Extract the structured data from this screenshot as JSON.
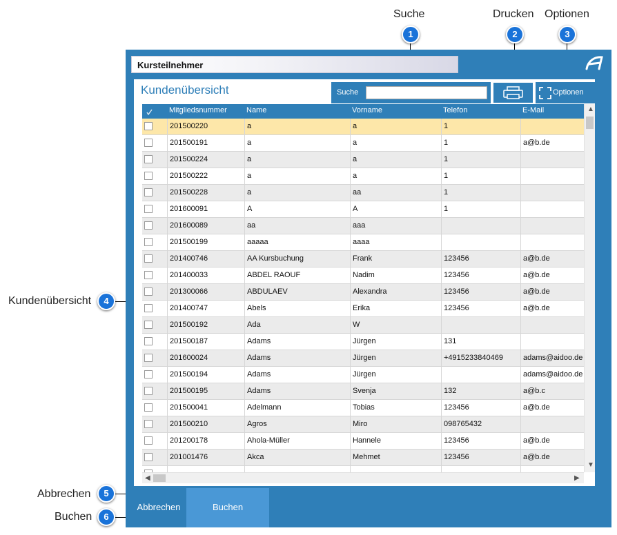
{
  "callouts": {
    "suche": {
      "label": "Suche",
      "num": "1"
    },
    "drucken": {
      "label": "Drucken",
      "num": "2"
    },
    "optionen": {
      "label": "Optionen",
      "num": "3"
    },
    "kunden": {
      "label": "Kundenübersicht",
      "num": "4"
    },
    "abbrechen": {
      "label": "Abbrechen",
      "num": "5"
    },
    "buchen": {
      "label": "Buchen",
      "num": "6"
    }
  },
  "window": {
    "title": "Kursteilnehmer",
    "panel_title": "Kundenübersicht",
    "search": {
      "label": "Suche",
      "value": "",
      "placeholder": ""
    },
    "options_label": "Optionen"
  },
  "table": {
    "headers": [
      "Mitgliedsnummer",
      "Name",
      "Vorname",
      "Telefon",
      "E-Mail"
    ],
    "rows": [
      [
        "201500220",
        "a",
        "a",
        "1",
        ""
      ],
      [
        "201500191",
        "a",
        "a",
        "1",
        "a@b.de"
      ],
      [
        "201500224",
        "a",
        "a",
        "1",
        ""
      ],
      [
        "201500222",
        "a",
        "a",
        "1",
        ""
      ],
      [
        "201500228",
        "a",
        "aa",
        "1",
        ""
      ],
      [
        "201600091",
        "A",
        "A",
        "1",
        ""
      ],
      [
        "201600089",
        "aa",
        "aaa",
        "",
        ""
      ],
      [
        "201500199",
        "aaaaa",
        "aaaa",
        "",
        ""
      ],
      [
        "201400746",
        "AA Kursbuchung",
        "Frank",
        "123456",
        "a@b.de"
      ],
      [
        "201400033",
        "ABDEL RAOUF",
        "Nadim",
        "123456",
        "a@b.de"
      ],
      [
        "201300066",
        "ABDULAEV",
        "Alexandra",
        "123456",
        "a@b.de"
      ],
      [
        "201400747",
        "Abels",
        "Erika",
        "123456",
        "a@b.de"
      ],
      [
        "201500192",
        "Ada",
        "W",
        "",
        ""
      ],
      [
        "201500187",
        "Adams",
        "Jürgen",
        "131",
        ""
      ],
      [
        "201600024",
        "Adams",
        "Jürgen",
        "+4915233840469",
        "adams@aidoo.de"
      ],
      [
        "201500194",
        "Adams",
        "Jürgen",
        "",
        "adams@aidoo.de"
      ],
      [
        "201500195",
        "Adams",
        "Svenja",
        "132",
        "a@b.c"
      ],
      [
        "201500041",
        "Adelmann",
        "Tobias",
        "123456",
        "a@b.de"
      ],
      [
        "201500210",
        "Agros",
        "Miro",
        "098765432",
        ""
      ],
      [
        "201200178",
        "Ahola-Müller",
        "Hannele",
        "123456",
        "a@b.de"
      ],
      [
        "201001476",
        "Akca",
        "Mehmet",
        "123456",
        "a@b.de"
      ],
      [
        "",
        "",
        "",
        "",
        ""
      ]
    ],
    "selected_row": 0,
    "colors": {
      "selected": "#fde7a9",
      "even": "#ebebeb",
      "odd": "#ffffff"
    }
  },
  "footer": {
    "cancel_label": "Abbrechen",
    "book_label": "Buchen"
  }
}
